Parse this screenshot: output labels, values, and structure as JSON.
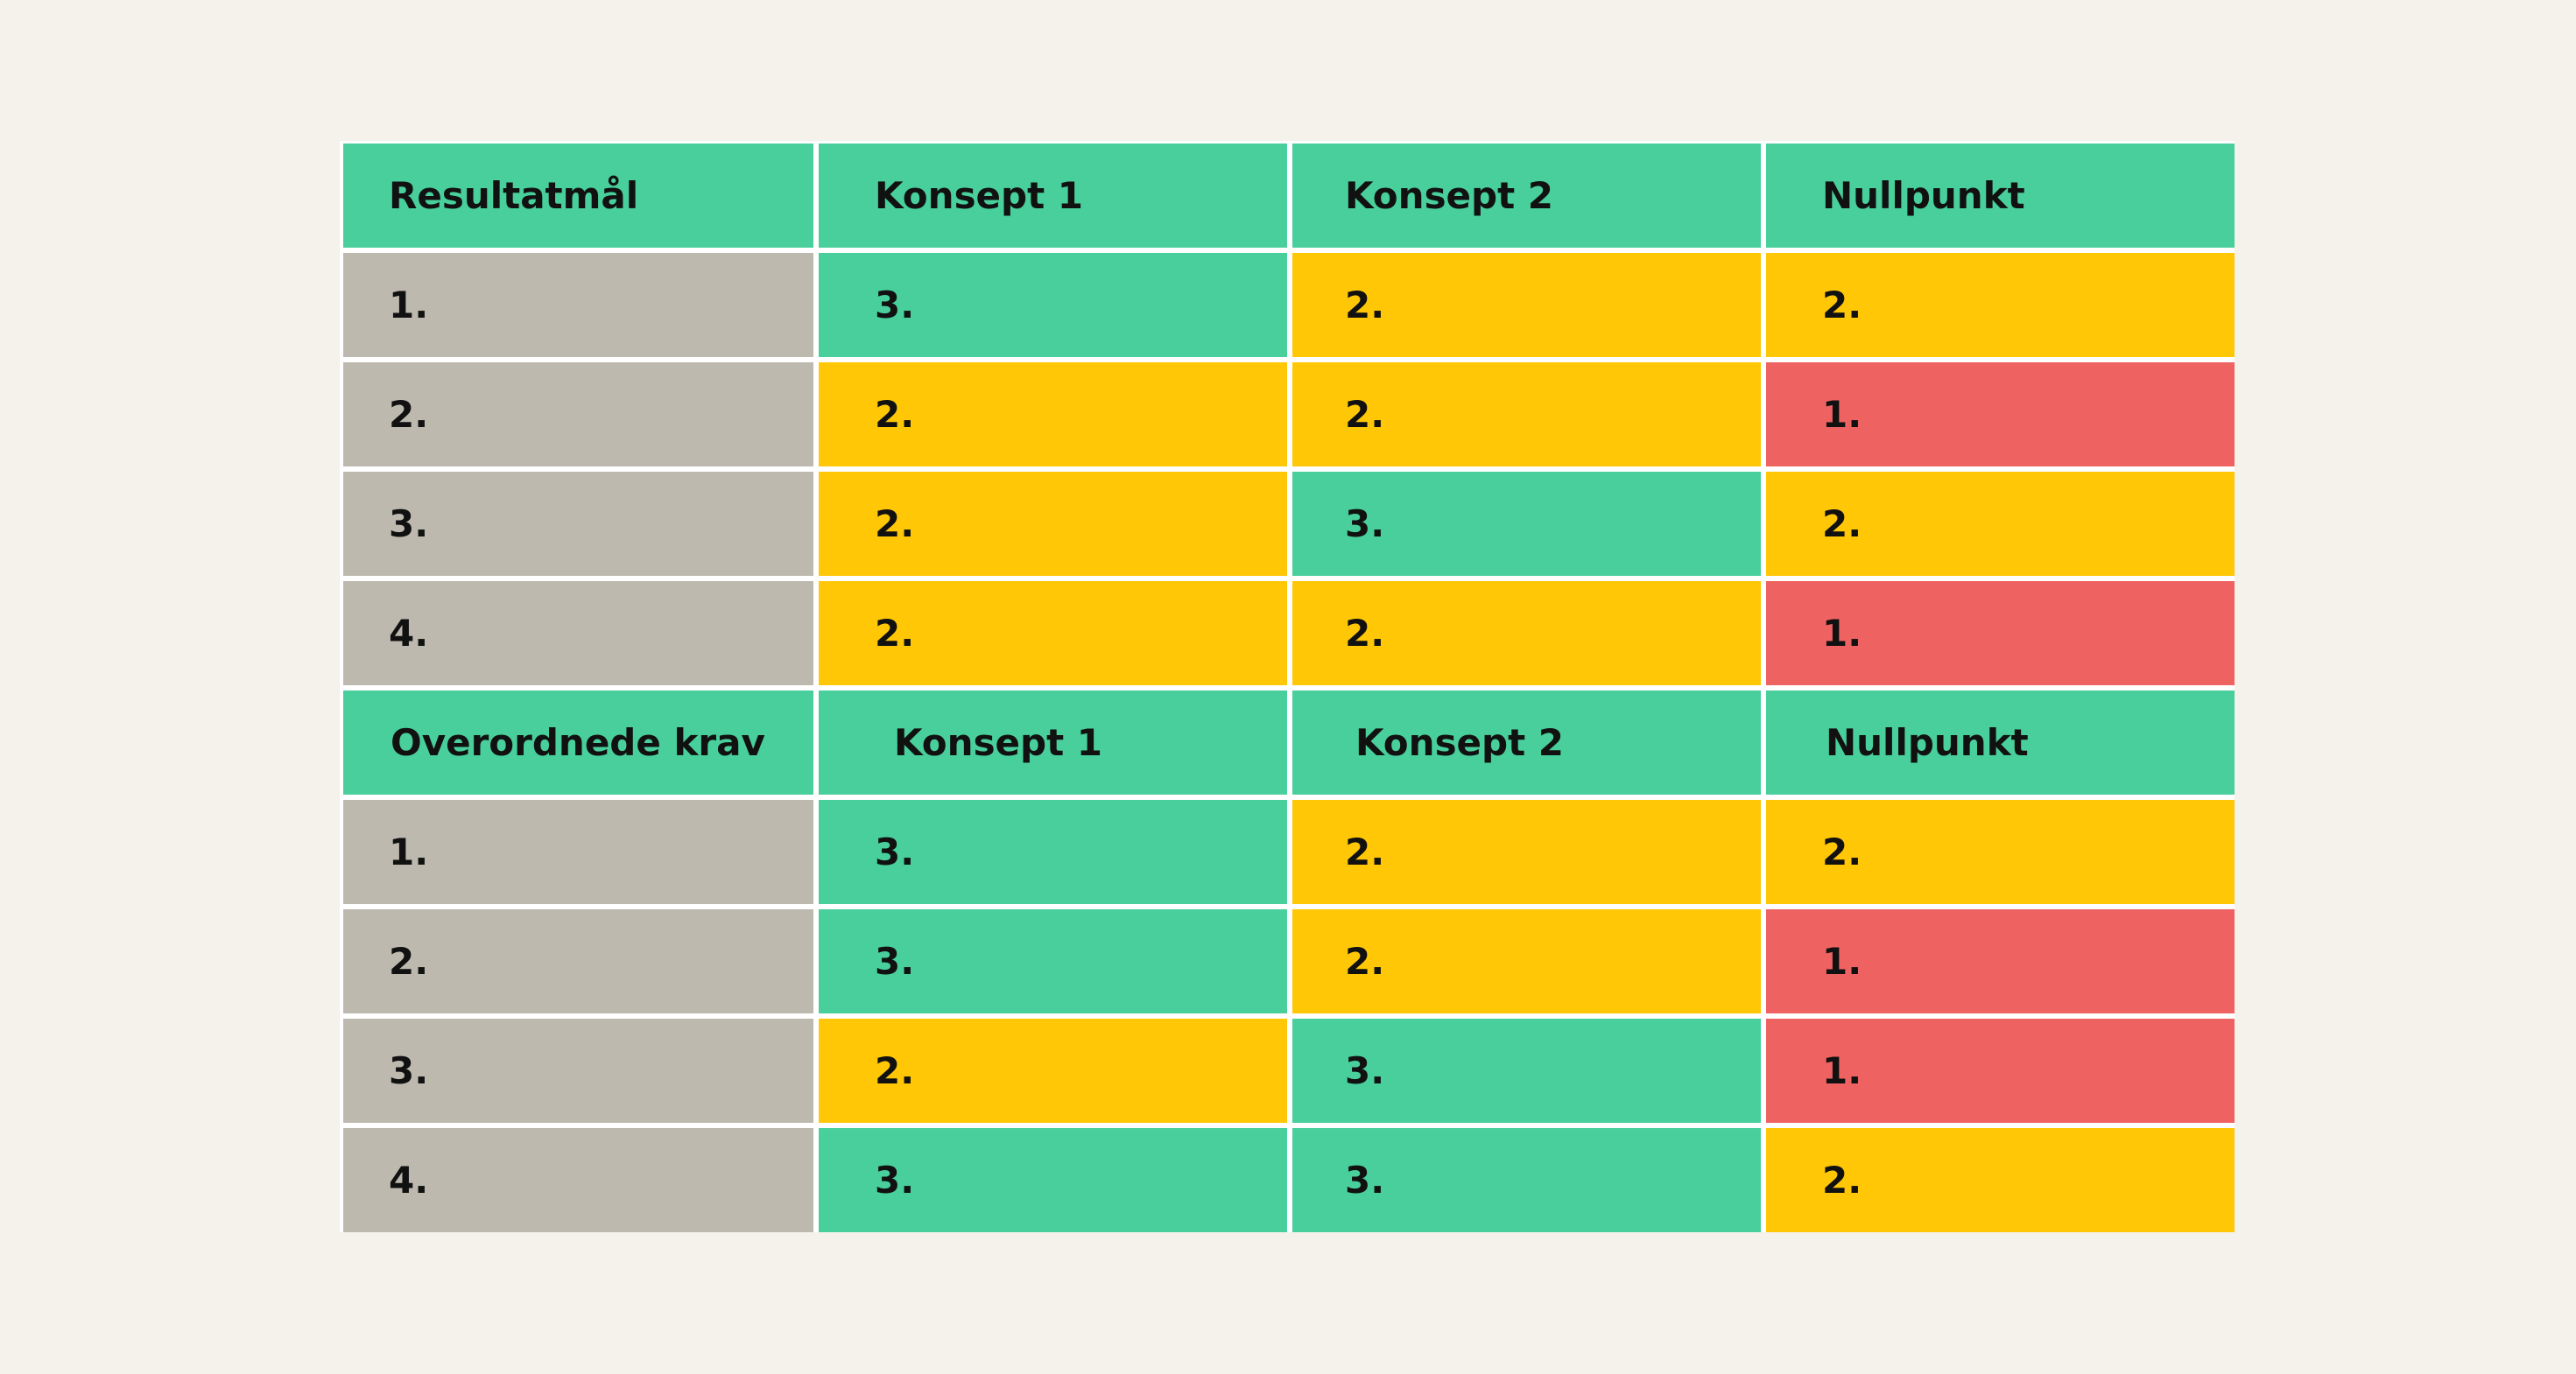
{
  "colors": {
    "background": "#f5f1eb",
    "green": "#48cf9b",
    "yellow": "#ffc705",
    "red": "#ef6262",
    "gray": "#bdb9ae"
  },
  "table": {
    "section1": {
      "headers": [
        "Resultatmål",
        "Konsept 1",
        "Konsept 2",
        "Nullpunkt"
      ],
      "rows": [
        {
          "label": "1.",
          "values": [
            "3.",
            "2.",
            "2."
          ]
        },
        {
          "label": "2.",
          "values": [
            "2.",
            "2.",
            "1."
          ]
        },
        {
          "label": "3.",
          "values": [
            "2.",
            "3.",
            "2."
          ]
        },
        {
          "label": "4.",
          "values": [
            "2.",
            "2.",
            "1."
          ]
        }
      ]
    },
    "section2": {
      "headers": [
        "Overordnede krav",
        "Konsept 1",
        "Konsept 2",
        "Nullpunkt"
      ],
      "rows": [
        {
          "label": "1.",
          "values": [
            "3.",
            "2.",
            "2."
          ]
        },
        {
          "label": "2.",
          "values": [
            "3.",
            "2.",
            "1."
          ]
        },
        {
          "label": "3.",
          "values": [
            "2.",
            "3.",
            "1."
          ]
        },
        {
          "label": "4.",
          "values": [
            "3.",
            "3.",
            "2."
          ]
        }
      ]
    }
  }
}
